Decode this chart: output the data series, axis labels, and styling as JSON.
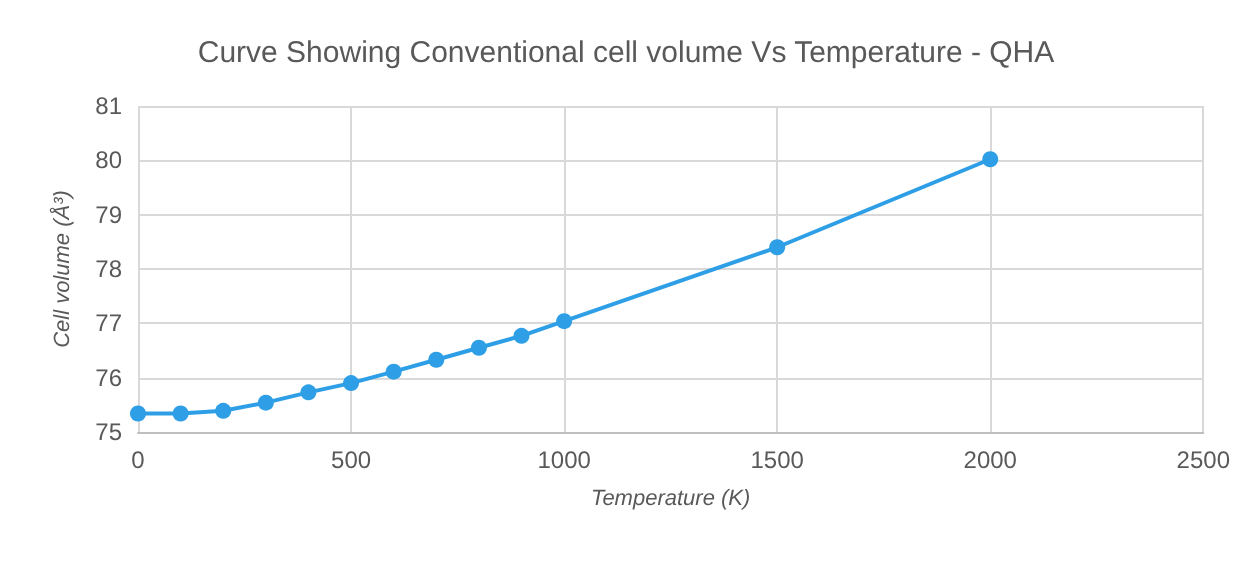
{
  "chart_data": {
    "type": "line",
    "title": "Curve Showing Conventional cell volume Vs Temperature - QHA",
    "xlabel": "Temperature (K)",
    "ylabel": "Cell volume (Å³)",
    "x": [
      0,
      100,
      200,
      300,
      400,
      500,
      600,
      700,
      800,
      900,
      1000,
      1500,
      2000
    ],
    "series": [
      {
        "color": "#2e9fe6",
        "values": [
          75.34,
          75.34,
          75.39,
          75.54,
          75.73,
          75.9,
          76.11,
          76.33,
          76.55,
          76.77,
          77.04,
          78.4,
          80.02
        ]
      }
    ],
    "xlim": [
      0,
      2500
    ],
    "xticks": [
      0,
      500,
      1000,
      1500,
      2000,
      2500
    ],
    "ylim": [
      75,
      81
    ],
    "yticks": [
      75,
      76,
      77,
      78,
      79,
      80,
      81
    ],
    "grid": true,
    "marker": "circle",
    "line_style": "solid"
  }
}
